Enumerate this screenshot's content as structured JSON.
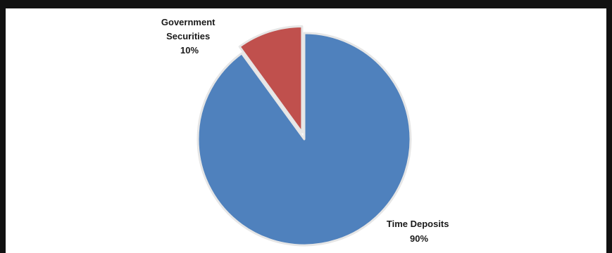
{
  "chart_data": {
    "type": "pie",
    "title": "",
    "slices": [
      {
        "label": "Time Deposits",
        "value": 90,
        "percent_label": "90%",
        "color": "#4f81bd"
      },
      {
        "label": "Government Securities",
        "value": 10,
        "percent_label": "10%",
        "color": "#c0504d"
      }
    ],
    "legend": "none"
  }
}
